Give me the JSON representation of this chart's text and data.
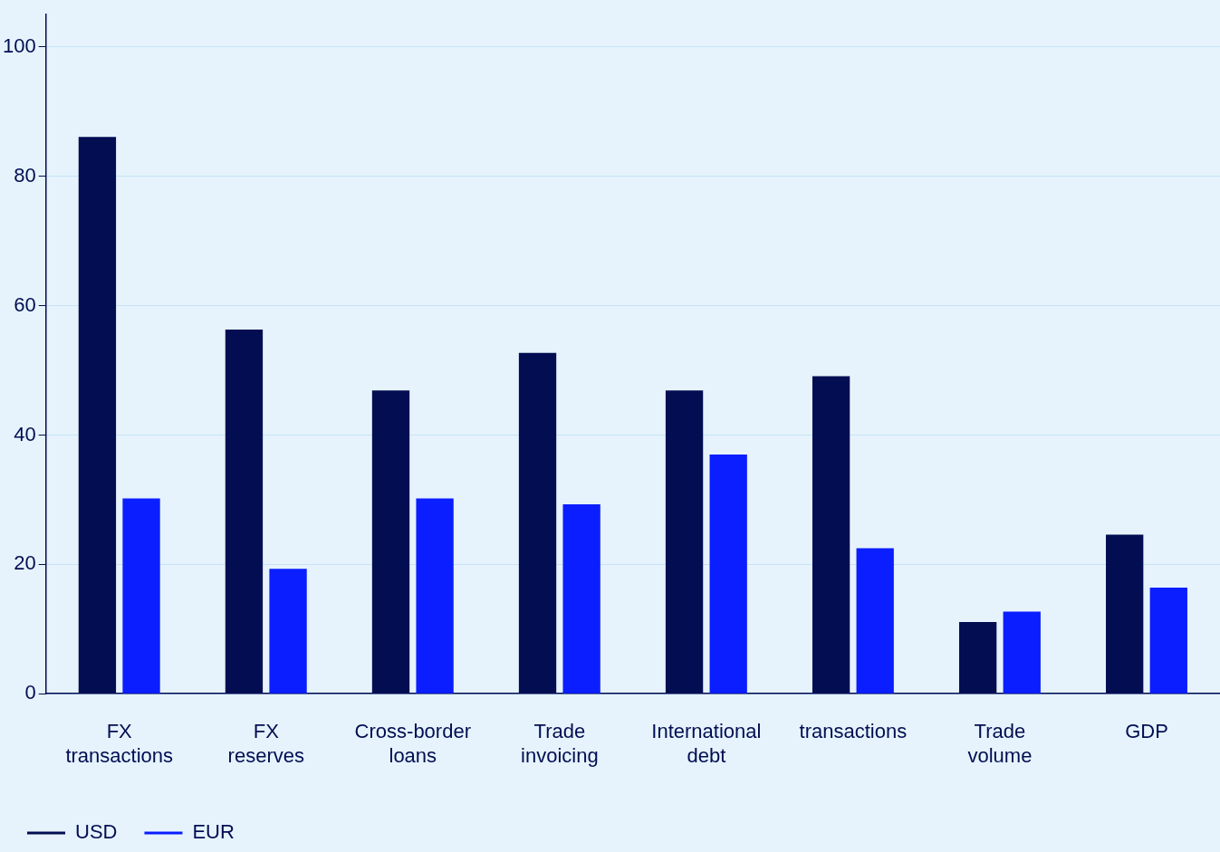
{
  "chart_data": {
    "type": "bar",
    "categories": [
      "FX transactions",
      "FX reserves",
      "Cross-border loans",
      "Trade invoicing",
      "International debt",
      "transactions",
      "Trade volume",
      "GDP"
    ],
    "series": [
      {
        "name": "USD",
        "color": "#020d52",
        "values": [
          86.1,
          56.3,
          46.9,
          52.7,
          46.9,
          49.1,
          11.1,
          24.6
        ]
      },
      {
        "name": "EUR",
        "color": "#0a1eff",
        "values": [
          30.2,
          19.3,
          30.2,
          29.3,
          37.0,
          22.5,
          12.7,
          16.4
        ]
      }
    ],
    "ylim": [
      0,
      105
    ],
    "yticks": [
      0,
      20,
      40,
      60,
      80,
      100
    ],
    "grid": "y",
    "legend": "bottom left"
  }
}
